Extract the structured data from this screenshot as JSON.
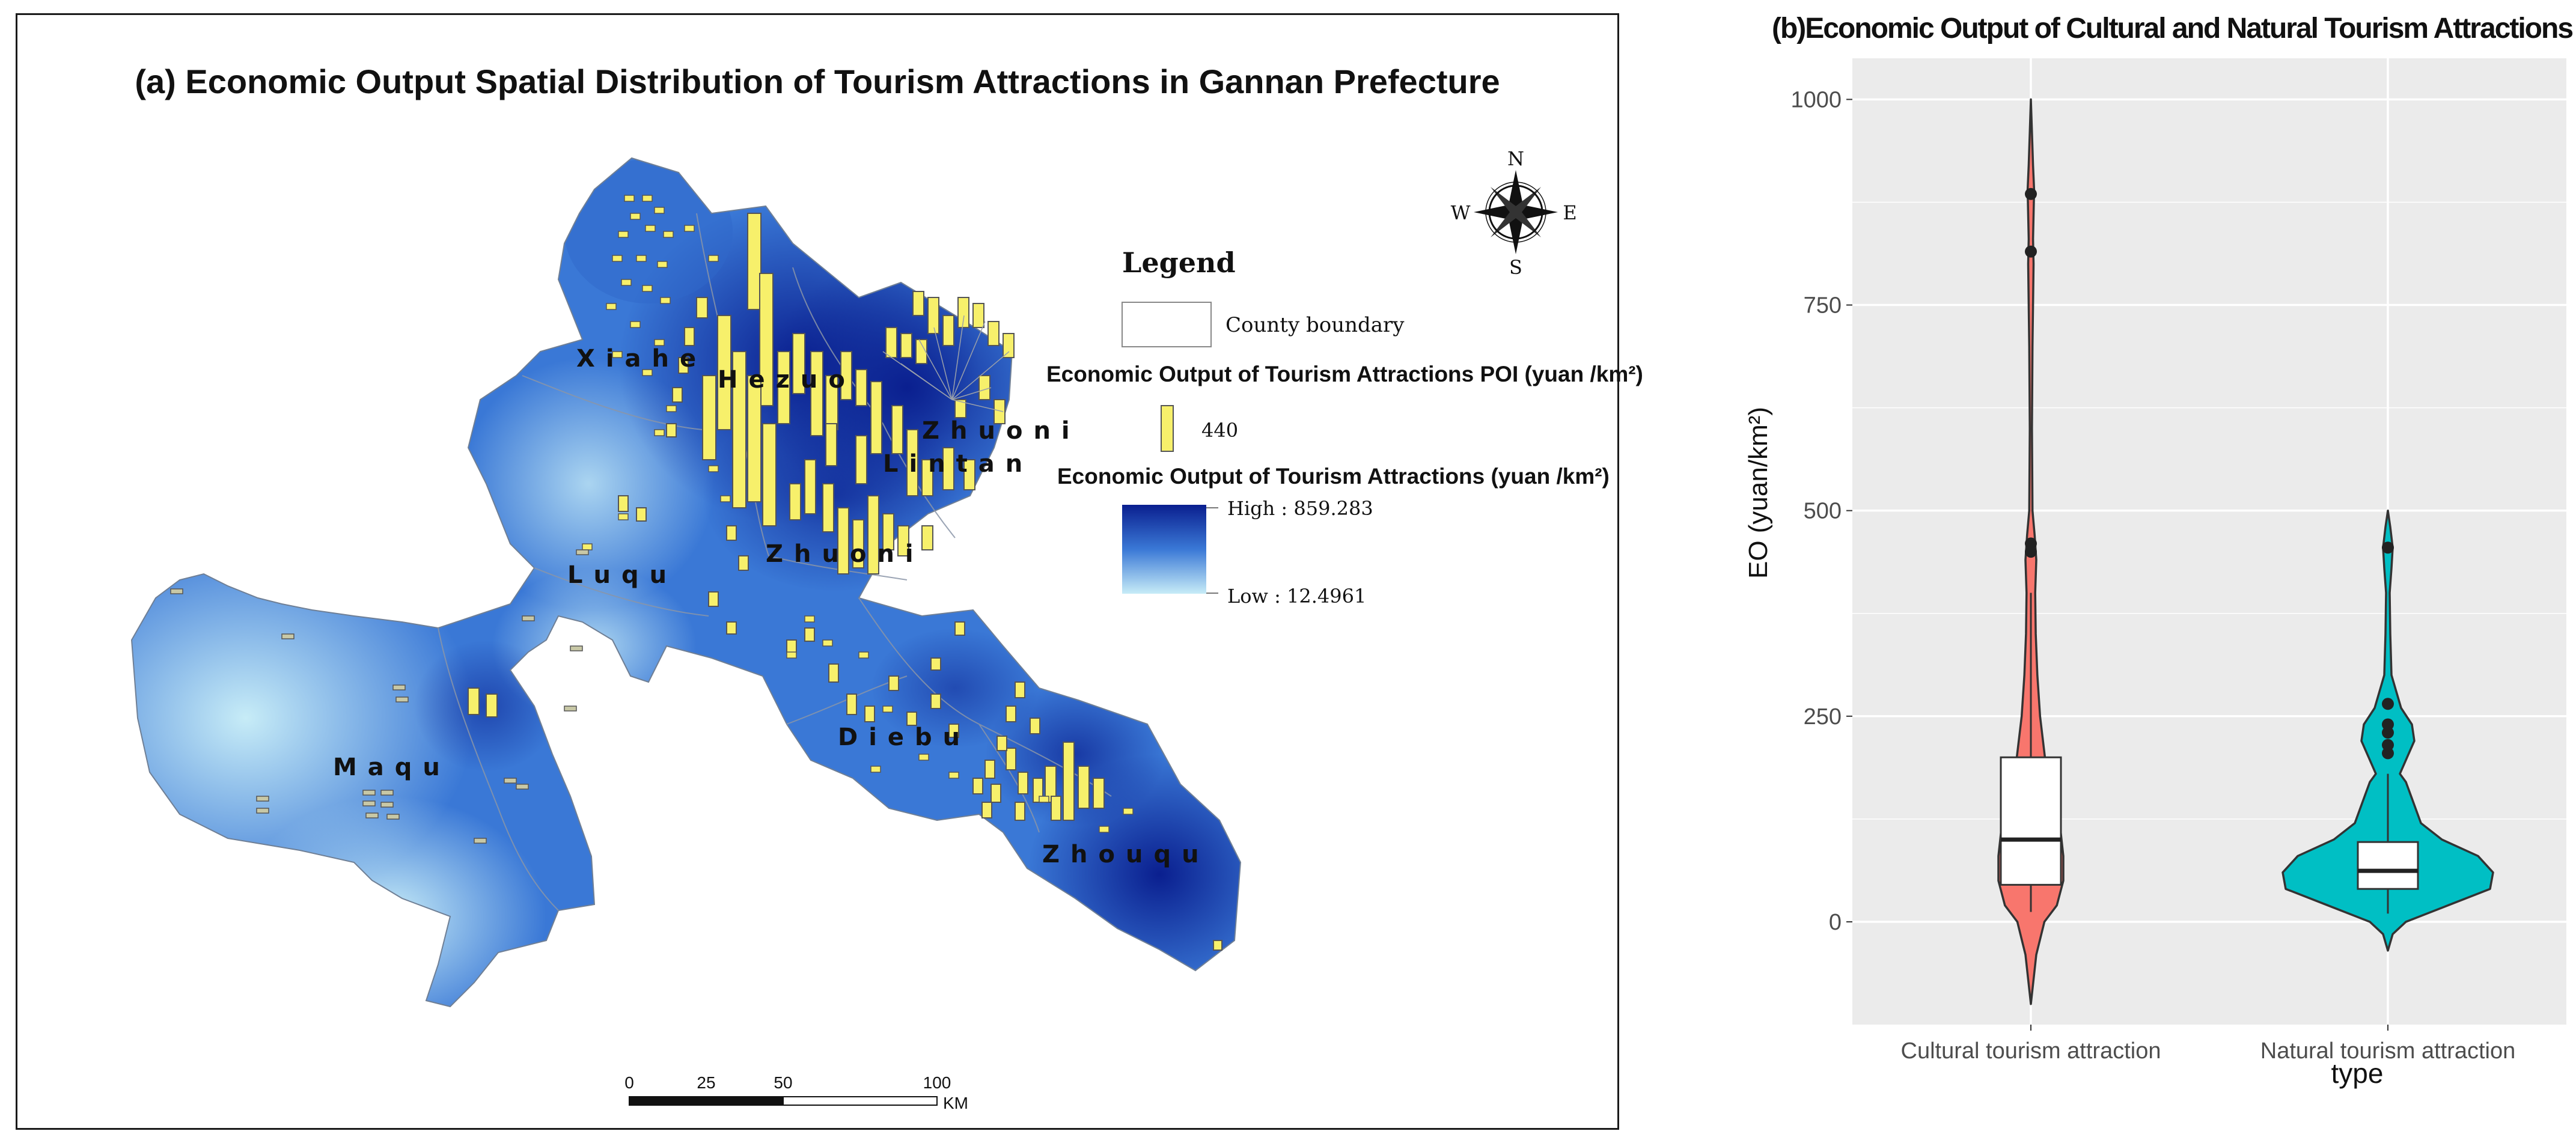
{
  "map": {
    "title": "(a) Economic Output Spatial Distribution of Tourism Attractions in Gannan Prefecture",
    "compass": {
      "n": "N",
      "s": "S",
      "e": "E",
      "w": "W"
    },
    "legend": {
      "title": "Legend",
      "boundary_label": "County boundary",
      "poi_title": "Economic Output of Tourism Attractions POI (yuan /km²)",
      "poi_value": "440",
      "surface_title": "Economic Output of Tourism Attractions (yuan /km²)",
      "high_label": "High : 859.283",
      "low_label": "Low : 12.4961"
    },
    "counties": [
      "Xiahe",
      "Hezuo",
      "Zhuoni",
      "Lintan",
      "Zhuoni",
      "Luqu",
      "Diebu",
      "Maqu",
      "Zhouqu"
    ],
    "scale_bar": {
      "ticks": [
        "0",
        "25",
        "50",
        "100"
      ],
      "unit": "KM"
    },
    "colors": {
      "high": "#0a1f8f",
      "mid": "#3a78d6",
      "low": "#bfe6f4",
      "poi": "#f7f06b"
    }
  },
  "violin": {
    "title": "(b)Economic Output of Cultural and Natural Tourism Attractions",
    "colors": {
      "cultural": "#f8766d",
      "natural": "#00bfc4",
      "panel": "#ebebeb"
    }
  },
  "chart_data": {
    "type": "violin",
    "xlabel": "type",
    "ylabel": "EO (yuan/km²)",
    "ylim": [
      -125,
      1050
    ],
    "yticks": [
      0,
      250,
      500,
      750,
      1000
    ],
    "categories": [
      "Cultural tourism attraction",
      "Natural tourism attraction"
    ],
    "series": [
      {
        "name": "Cultural tourism attraction",
        "box": {
          "q1": 45,
          "median": 100,
          "q3": 200,
          "whisker_low": 12,
          "whisker_high": 400
        },
        "outliers": [
          885,
          815,
          460,
          450
        ],
        "violin_range": [
          -100,
          1000
        ]
      },
      {
        "name": "Natural tourism attraction",
        "box": {
          "q1": 40,
          "median": 62,
          "q3": 97,
          "whisker_low": 10,
          "whisker_high": 180
        },
        "outliers": [
          455,
          265,
          240,
          230,
          215,
          205
        ],
        "violin_range": [
          -35,
          500
        ]
      }
    ]
  }
}
